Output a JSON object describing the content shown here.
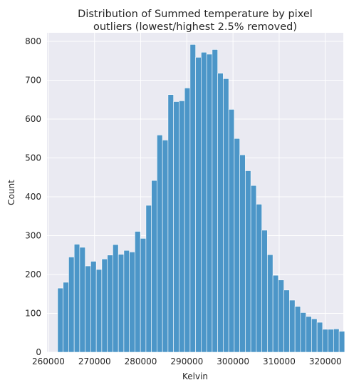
{
  "chart_data": {
    "type": "bar",
    "title": [
      "Distribution of Summed temperature by pixel",
      "outliers (lowest/highest 2.5% removed)"
    ],
    "xlabel": "Kelvin",
    "ylabel": "Count",
    "xlim": [
      259700,
      323900
    ],
    "ylim": [
      0,
      822
    ],
    "x_ticks": [
      260000,
      270000,
      280000,
      290000,
      300000,
      310000,
      320000
    ],
    "y_ticks": [
      0,
      100,
      200,
      300,
      400,
      500,
      600,
      700,
      800
    ],
    "bin_start": 262000,
    "bin_width": 1196,
    "values": [
      165,
      180,
      245,
      278,
      270,
      222,
      234,
      213,
      240,
      250,
      277,
      252,
      262,
      258,
      311,
      293,
      378,
      442,
      559,
      546,
      663,
      645,
      647,
      680,
      792,
      759,
      772,
      767,
      779,
      718,
      704,
      625,
      550,
      508,
      467,
      429,
      381,
      314,
      251,
      198,
      186,
      160,
      134,
      118,
      102,
      92,
      86,
      77,
      59,
      59,
      60,
      54
    ],
    "bar_color": "#4c96c8",
    "background_color": "#eaeaf2",
    "grid": true
  }
}
